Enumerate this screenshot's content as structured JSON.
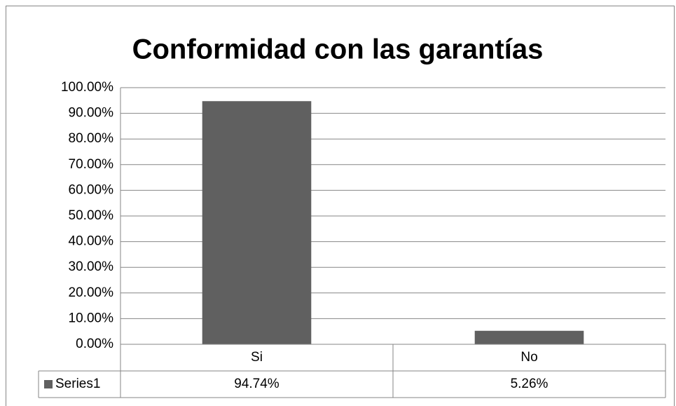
{
  "chart_data": {
    "type": "bar",
    "title": "Conformidad con las garantías",
    "categories": [
      "Si",
      "No"
    ],
    "series": [
      {
        "name": "Series1",
        "color": "#606060",
        "values": [
          94.74,
          5.26
        ],
        "value_labels": [
          "94.74%",
          "5.26%"
        ]
      }
    ],
    "ylim": [
      0,
      100
    ],
    "yticks": [
      {
        "value": 0,
        "label": "0.00%"
      },
      {
        "value": 10,
        "label": "10.00%"
      },
      {
        "value": 20,
        "label": "20.00%"
      },
      {
        "value": 30,
        "label": "30.00%"
      },
      {
        "value": 40,
        "label": "40.00%"
      },
      {
        "value": 50,
        "label": "50.00%"
      },
      {
        "value": 60,
        "label": "60.00%"
      },
      {
        "value": 70,
        "label": "70.00%"
      },
      {
        "value": 80,
        "label": "80.00%"
      },
      {
        "value": 90,
        "label": "90.00%"
      },
      {
        "value": 100,
        "label": "100.00%"
      }
    ],
    "grid": true,
    "data_table": true
  }
}
